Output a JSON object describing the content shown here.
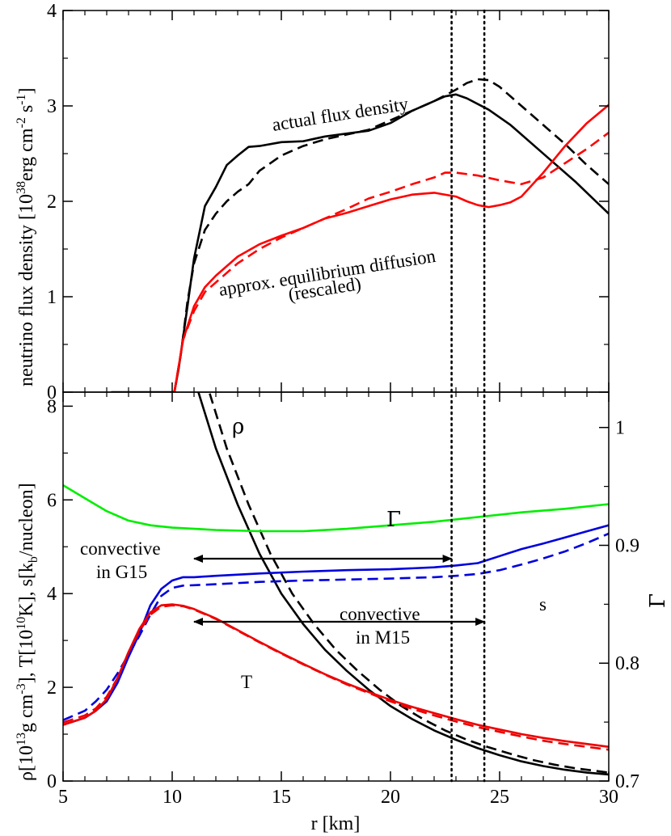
{
  "chart_data": [
    {
      "type": "line",
      "panel": "top",
      "ylabel_main": "neutrino flux density [10",
      "ylabel_sup1": "38",
      "ylabel_mid": "erg cm",
      "ylabel_sup2": "-2",
      "ylabel_mid2": " s",
      "ylabel_sup3": "-1",
      "ylabel_end": "]",
      "xlim": [
        5,
        30
      ],
      "ylim": [
        0,
        4
      ],
      "yticks": [
        "0",
        "1",
        "2",
        "3",
        "4"
      ],
      "annotations": {
        "actual": "actual flux density",
        "approx": "approx. equilibrium diffusion",
        "rescaled": "(rescaled)"
      },
      "series": [
        {
          "color": "#000000",
          "style": "solid",
          "x": [
            7.2,
            9.5,
            10.1,
            10.3,
            10.7,
            11.0,
            11.5,
            12.0,
            12.5,
            13.0,
            13.5,
            14.0,
            15.0,
            16.0,
            17.0,
            18.0,
            19.0,
            20.0,
            21.0,
            22.0,
            22.5,
            23.0,
            23.5,
            24.5,
            25.5,
            26.5,
            27.5,
            28.5,
            29.5,
            30.0
          ],
          "y": [
            0,
            0,
            0,
            0.25,
            0.9,
            1.4,
            1.95,
            2.15,
            2.38,
            2.48,
            2.57,
            2.58,
            2.62,
            2.63,
            2.68,
            2.71,
            2.74,
            2.82,
            2.95,
            3.05,
            3.1,
            3.12,
            3.08,
            2.96,
            2.8,
            2.6,
            2.4,
            2.2,
            1.98,
            1.87
          ]
        },
        {
          "color": "#000000",
          "style": "dashed",
          "x": [
            10.1,
            10.4,
            10.7,
            11.0,
            11.5,
            12.0,
            12.5,
            13.0,
            13.5,
            14.0,
            15.0,
            16.0,
            17.0,
            18.0,
            19.0,
            20.0,
            21.0,
            22.0,
            23.0,
            23.5,
            24.0,
            24.5,
            25.0,
            26.0,
            27.0,
            28.0,
            29.0,
            30.0
          ],
          "y": [
            0,
            0.4,
            0.95,
            1.35,
            1.7,
            1.87,
            2.0,
            2.1,
            2.18,
            2.32,
            2.48,
            2.58,
            2.65,
            2.7,
            2.75,
            2.85,
            2.95,
            3.05,
            3.17,
            3.24,
            3.28,
            3.27,
            3.2,
            3.0,
            2.8,
            2.6,
            2.38,
            2.18
          ]
        },
        {
          "color": "#ff0000",
          "style": "solid",
          "x": [
            10.1,
            10.5,
            11.0,
            11.5,
            12.0,
            13.0,
            14.0,
            15.0,
            16.0,
            17.0,
            18.0,
            19.0,
            20.0,
            21.0,
            22.0,
            23.0,
            23.5,
            24.0,
            24.5,
            25.0,
            25.5,
            26.0,
            27.0,
            28.0,
            29.0,
            30.0
          ],
          "y": [
            0,
            0.55,
            0.9,
            1.1,
            1.22,
            1.42,
            1.55,
            1.64,
            1.72,
            1.82,
            1.88,
            1.95,
            2.02,
            2.07,
            2.09,
            2.05,
            2.0,
            1.96,
            1.94,
            1.96,
            1.99,
            2.05,
            2.3,
            2.58,
            2.82,
            3.01
          ]
        },
        {
          "color": "#ff0000",
          "style": "dashed",
          "x": [
            10.1,
            10.5,
            11.0,
            11.5,
            12.0,
            13.0,
            14.0,
            15.0,
            16.0,
            17.0,
            18.0,
            19.0,
            20.0,
            21.0,
            22.0,
            22.5,
            23.0,
            24.0,
            25.0,
            26.0,
            27.0,
            28.0,
            29.0,
            30.0
          ],
          "y": [
            0,
            0.55,
            0.85,
            1.05,
            1.15,
            1.35,
            1.5,
            1.62,
            1.72,
            1.82,
            1.92,
            2.03,
            2.1,
            2.18,
            2.25,
            2.3,
            2.3,
            2.27,
            2.22,
            2.18,
            2.25,
            2.4,
            2.55,
            2.72
          ]
        }
      ]
    },
    {
      "type": "line",
      "panel": "bottom",
      "xlabel": "r [km]",
      "ylabel_left": "ρ[10",
      "ylabel_sup1": "13",
      "ylabel_mid1": "g cm",
      "ylabel_sup2": "-3",
      "ylabel_mid2": "], T[10",
      "ylabel_sup3": "10",
      "ylabel_mid3": "K], s[k",
      "ylabel_sub": "b",
      "ylabel_end": "/nucleon]",
      "ylabel_right": "Γ",
      "xlim": [
        5,
        30
      ],
      "ylim": [
        0,
        8.3
      ],
      "ylim_right": [
        0.7,
        1.03
      ],
      "xticks": [
        "5",
        "10",
        "15",
        "20",
        "25",
        "30"
      ],
      "yticks": [
        "0",
        "2",
        "4",
        "6",
        "8"
      ],
      "yticks_right": [
        "0.7",
        "0.8",
        "0.9",
        "1"
      ],
      "labels": {
        "rho": "ρ",
        "gamma": "Γ",
        "s": "s",
        "T": "T",
        "conv_g15_1": "convective",
        "conv_g15_2": "in G15",
        "conv_m15_1": "convective",
        "conv_m15_2": "in M15"
      },
      "convective_ranges": [
        {
          "name": "G15",
          "from": 11.0,
          "to": 22.8
        },
        {
          "name": "M15",
          "from": 11.0,
          "to": 24.3
        }
      ],
      "vertical_dotted_lines": [
        22.8,
        24.3
      ],
      "series": [
        {
          "color": "#000000",
          "style": "solid",
          "axis": "left",
          "x": [
            11.0,
            12.0,
            13.0,
            14.0,
            15.0,
            16.0,
            17.0,
            18.0,
            19.0,
            20.0,
            21.0,
            22.0,
            23.0,
            24.0,
            25.0,
            26.0,
            27.0,
            28.0,
            29.0,
            30.0
          ],
          "y": [
            8.6,
            7.1,
            5.9,
            4.85,
            4.0,
            3.35,
            2.8,
            2.35,
            1.95,
            1.6,
            1.32,
            1.08,
            0.88,
            0.7,
            0.55,
            0.42,
            0.32,
            0.24,
            0.18,
            0.14
          ]
        },
        {
          "color": "#000000",
          "style": "dashed",
          "axis": "left",
          "x": [
            11.5,
            12.5,
            13.5,
            14.5,
            15.5,
            16.5,
            17.5,
            18.5,
            19.5,
            20.5,
            21.5,
            22.5,
            23.5,
            24.5,
            25.5,
            26.5,
            27.5,
            28.5,
            29.5,
            30.0
          ],
          "y": [
            8.6,
            7.1,
            5.9,
            4.85,
            4.0,
            3.35,
            2.8,
            2.35,
            1.95,
            1.6,
            1.32,
            1.08,
            0.88,
            0.72,
            0.58,
            0.45,
            0.35,
            0.27,
            0.21,
            0.18
          ]
        },
        {
          "color": "#00ee00",
          "style": "solid",
          "axis": "right",
          "x": [
            5.0,
            6.0,
            7.0,
            8.0,
            9.0,
            10.0,
            12.0,
            14.0,
            16.0,
            18.0,
            20.0,
            22.0,
            24.0,
            26.0,
            28.0,
            30.0
          ],
          "y": [
            0.951,
            0.94,
            0.929,
            0.921,
            0.917,
            0.915,
            0.913,
            0.912,
            0.912,
            0.914,
            0.917,
            0.92,
            0.924,
            0.928,
            0.931,
            0.935
          ]
        },
        {
          "color": "#0000dd",
          "style": "solid",
          "axis": "left",
          "x": [
            5.0,
            6.0,
            6.5,
            7.0,
            7.5,
            8.0,
            8.5,
            9.0,
            9.5,
            10.0,
            10.5,
            11.0,
            12.0,
            14.0,
            16.0,
            18.0,
            20.0,
            22.0,
            23.0,
            24.0,
            25.0,
            26.0,
            27.0,
            28.0,
            29.0,
            30.0
          ],
          "y": [
            1.2,
            1.35,
            1.5,
            1.7,
            2.1,
            2.65,
            3.15,
            3.75,
            4.1,
            4.28,
            4.35,
            4.35,
            4.38,
            4.43,
            4.47,
            4.5,
            4.52,
            4.56,
            4.6,
            4.65,
            4.8,
            4.95,
            5.07,
            5.2,
            5.33,
            5.46
          ]
        },
        {
          "color": "#0000dd",
          "style": "dashed",
          "axis": "left",
          "x": [
            5.0,
            6.0,
            6.5,
            7.0,
            7.5,
            8.0,
            8.5,
            9.0,
            9.5,
            10.0,
            10.5,
            11.0,
            12.0,
            14.0,
            16.0,
            18.0,
            20.0,
            22.0,
            23.0,
            24.0,
            25.0,
            26.0,
            27.0,
            28.0,
            29.0,
            30.0
          ],
          "y": [
            1.3,
            1.5,
            1.7,
            1.95,
            2.3,
            2.7,
            3.1,
            3.55,
            3.95,
            4.12,
            4.17,
            4.18,
            4.2,
            4.25,
            4.28,
            4.3,
            4.32,
            4.35,
            4.38,
            4.42,
            4.5,
            4.62,
            4.75,
            4.9,
            5.08,
            5.28
          ]
        },
        {
          "color": "#ee0000",
          "style": "solid",
          "axis": "left",
          "x": [
            5.0,
            6.0,
            6.5,
            7.0,
            7.5,
            8.0,
            8.5,
            9.0,
            9.5,
            10.0,
            10.5,
            11.0,
            12.0,
            13.0,
            14.0,
            15.0,
            16.0,
            17.0,
            18.0,
            19.0,
            20.0,
            21.0,
            22.0,
            23.0,
            24.0,
            25.0,
            26.0,
            27.0,
            28.0,
            29.0,
            30.0
          ],
          "y": [
            1.2,
            1.35,
            1.5,
            1.75,
            2.2,
            2.75,
            3.25,
            3.6,
            3.75,
            3.77,
            3.74,
            3.67,
            3.47,
            3.22,
            2.97,
            2.73,
            2.5,
            2.28,
            2.08,
            1.9,
            1.73,
            1.58,
            1.45,
            1.32,
            1.2,
            1.1,
            1.0,
            0.92,
            0.85,
            0.79,
            0.73
          ]
        },
        {
          "color": "#ee0000",
          "style": "dashed",
          "axis": "left",
          "x": [
            5.0,
            6.0,
            6.5,
            7.0,
            7.5,
            8.0,
            8.5,
            9.0,
            9.5,
            10.0,
            10.5,
            11.0,
            12.0,
            13.0,
            14.0,
            15.0,
            16.0,
            17.0,
            18.0,
            19.0,
            20.0,
            21.0,
            22.0,
            23.0,
            24.0,
            25.0,
            26.0,
            27.0,
            28.0,
            29.0,
            30.0
          ],
          "y": [
            1.25,
            1.4,
            1.55,
            1.8,
            2.2,
            2.75,
            3.2,
            3.55,
            3.72,
            3.75,
            3.73,
            3.66,
            3.46,
            3.21,
            2.96,
            2.72,
            2.49,
            2.27,
            2.06,
            1.88,
            1.7,
            1.54,
            1.4,
            1.27,
            1.15,
            1.05,
            0.95,
            0.86,
            0.79,
            0.73,
            0.67
          ]
        }
      ]
    }
  ]
}
